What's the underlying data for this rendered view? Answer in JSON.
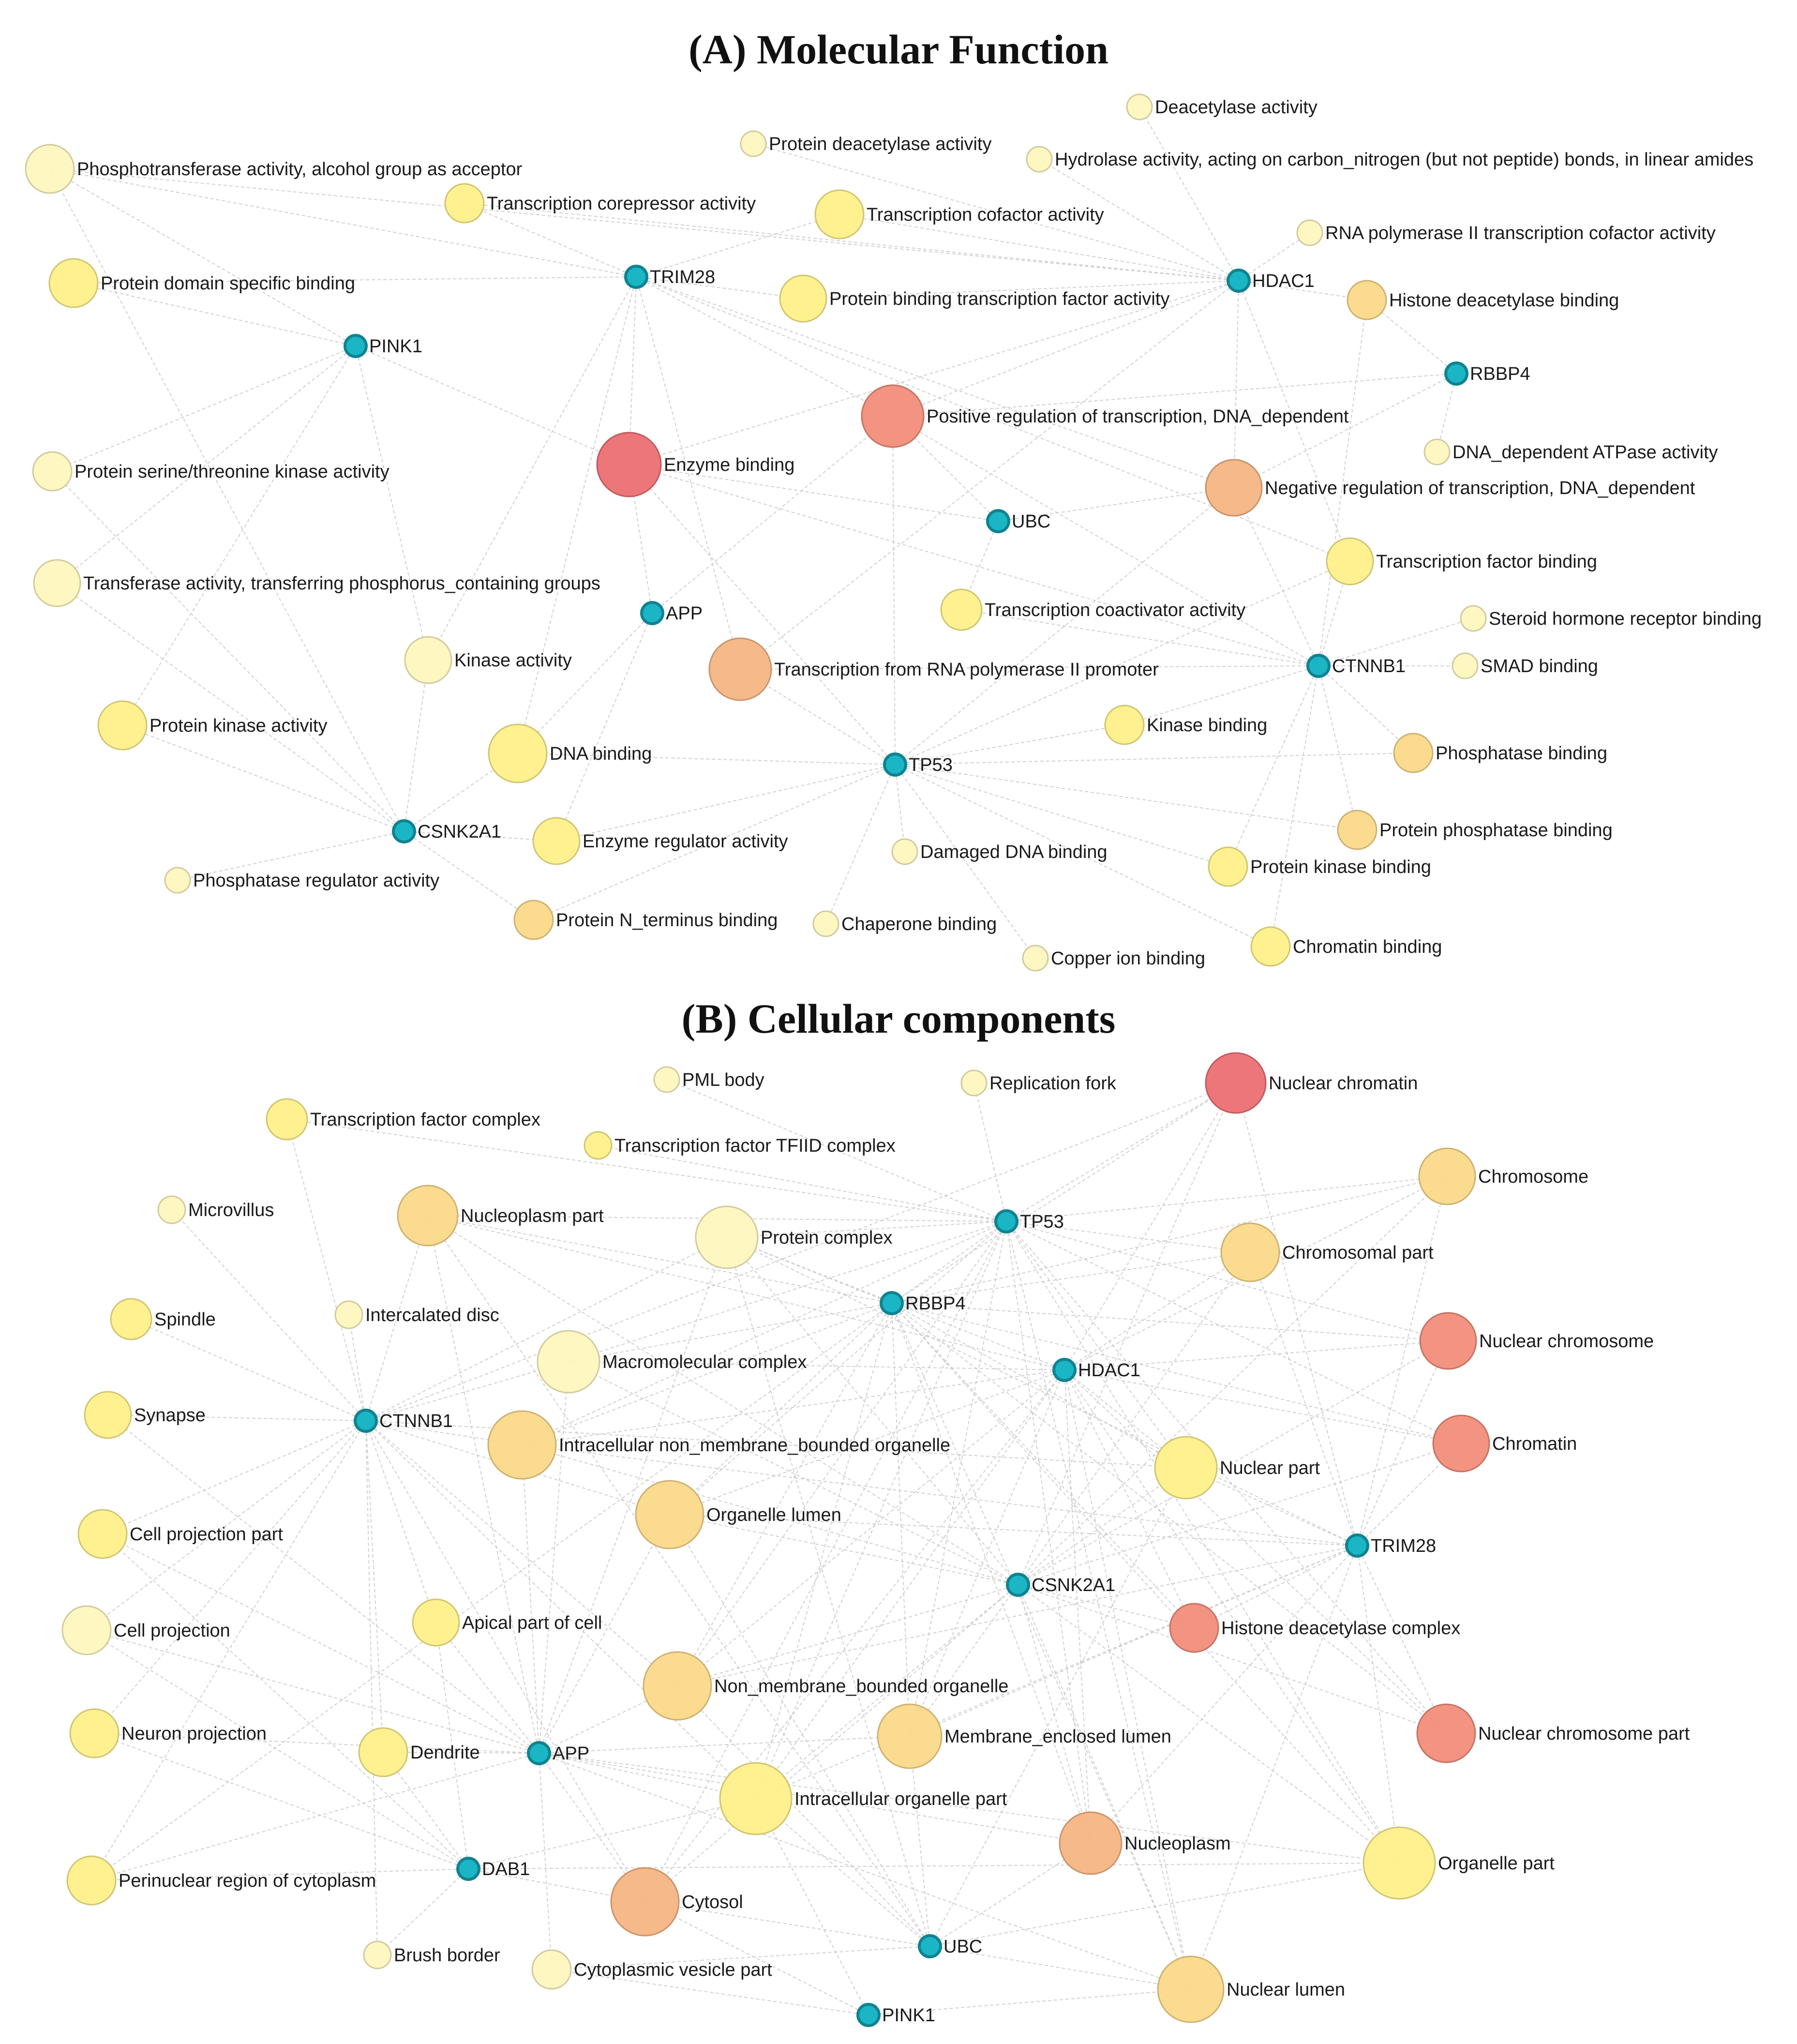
{
  "colors": {
    "gene": "#1bb6c6",
    "gene_stroke": "#0f8391",
    "edge": "#c9c9c9",
    "level1": "#fff7bf",
    "level2": "#fff08a",
    "level3": "#fbd98a",
    "level4": "#f6b584",
    "level5": "#f28d7a",
    "level6": "#ec6f73"
  },
  "panel_a": {
    "letter": "A",
    "title": "Molecular Function",
    "genes": [
      "TRIM28",
      "HDAC1",
      "PINK1",
      "RBBP4",
      "UBC",
      "APP",
      "CTNNB1",
      "TP53",
      "CSNK2A1"
    ],
    "terms": [
      {
        "id": "deacetylase",
        "label": "Deacetylase activity",
        "level": 1
      },
      {
        "id": "protein_deacetylase",
        "label": "Protein deacetylase activity",
        "level": 1
      },
      {
        "id": "hydrolase",
        "label": "Hydrolase activity, acting on carbon_nitrogen (but not peptide) bonds, in linear amides",
        "level": 1
      },
      {
        "id": "phosphotransferase",
        "label": "Phosphotransferase activity, alcohol group as acceptor",
        "level": 1
      },
      {
        "id": "corepressor",
        "label": "Transcription corepressor activity",
        "level": 2
      },
      {
        "id": "cofactor",
        "label": "Transcription cofactor activity",
        "level": 2
      },
      {
        "id": "rnapol_cofactor",
        "label": "RNA polymerase II transcription cofactor activity",
        "level": 1
      },
      {
        "id": "domain_binding",
        "label": "Protein domain specific binding",
        "level": 2
      },
      {
        "id": "binding_tf",
        "label": "Protein binding transcription factor activity",
        "level": 2
      },
      {
        "id": "hdac_binding",
        "label": "Histone deacetylase binding",
        "level": 3
      },
      {
        "id": "pos_reg",
        "label": "Positive regulation of transcription, DNA_dependent",
        "level": 5
      },
      {
        "id": "ser_thr_kinase",
        "label": "Protein serine/threonine kinase activity",
        "level": 1
      },
      {
        "id": "enzyme_binding",
        "label": "Enzyme binding",
        "level": 6
      },
      {
        "id": "atpase",
        "label": "DNA_dependent ATPase activity",
        "level": 1
      },
      {
        "id": "neg_reg",
        "label": "Negative regulation of transcription, DNA_dependent",
        "level": 4
      },
      {
        "id": "transferase",
        "label": "Transferase activity, transferring phosphorus_containing groups",
        "level": 1
      },
      {
        "id": "tf_binding",
        "label": "Transcription factor binding",
        "level": 2
      },
      {
        "id": "coactivator",
        "label": "Transcription coactivator activity",
        "level": 2
      },
      {
        "id": "steroid",
        "label": "Steroid hormone receptor binding",
        "level": 1
      },
      {
        "id": "kinase_activity",
        "label": "Kinase activity",
        "level": 1
      },
      {
        "id": "rnapol_promoter",
        "label": "Transcription from RNA polymerase II promoter",
        "level": 4
      },
      {
        "id": "smad",
        "label": "SMAD binding",
        "level": 1
      },
      {
        "id": "protein_kinase_activity",
        "label": "Protein kinase activity",
        "level": 2
      },
      {
        "id": "kinase_binding",
        "label": "Kinase binding",
        "level": 2
      },
      {
        "id": "dna_binding",
        "label": "DNA binding",
        "level": 2
      },
      {
        "id": "phosphatase_binding",
        "label": "Phosphatase binding",
        "level": 3
      },
      {
        "id": "protein_phosphatase_binding",
        "label": "Protein phosphatase binding",
        "level": 3
      },
      {
        "id": "enzyme_regulator",
        "label": "Enzyme regulator activity",
        "level": 2
      },
      {
        "id": "damaged_dna",
        "label": "Damaged DNA binding",
        "level": 1
      },
      {
        "id": "protein_kinase_binding",
        "label": "Protein kinase binding",
        "level": 2
      },
      {
        "id": "phosphatase_regulator",
        "label": "Phosphatase regulator activity",
        "level": 1
      },
      {
        "id": "n_terminus",
        "label": "Protein N_terminus binding",
        "level": 3
      },
      {
        "id": "chaperone",
        "label": "Chaperone binding",
        "level": 1
      },
      {
        "id": "chromatin_binding",
        "label": "Chromatin binding",
        "level": 2
      },
      {
        "id": "copper",
        "label": "Copper ion binding",
        "level": 1
      }
    ]
  },
  "panel_b": {
    "letter": "B",
    "title": "Cellular components",
    "genes": [
      "TP53",
      "RBBP4",
      "HDAC1",
      "CTNNB1",
      "TRIM28",
      "CSNK2A1",
      "APP",
      "DAB1",
      "UBC",
      "PINK1"
    ],
    "terms": [
      {
        "id": "pml",
        "label": "PML body",
        "level": 1
      },
      {
        "id": "replication_fork",
        "label": "Replication fork",
        "level": 1
      },
      {
        "id": "nuclear_chromatin",
        "label": "Nuclear chromatin",
        "level": 6
      },
      {
        "id": "tf_complex",
        "label": "Transcription factor complex",
        "level": 2
      },
      {
        "id": "tfiid",
        "label": "Transcription factor TFIID complex",
        "level": 2
      },
      {
        "id": "chromosome",
        "label": "Chromosome",
        "level": 3
      },
      {
        "id": "microvillus",
        "label": "Microvillus",
        "level": 1
      },
      {
        "id": "nucleoplasm_part",
        "label": "Nucleoplasm part",
        "level": 3
      },
      {
        "id": "protein_complex",
        "label": "Protein complex",
        "level": 1
      },
      {
        "id": "chromosomal_part",
        "label": "Chromosomal part",
        "level": 3
      },
      {
        "id": "spindle",
        "label": "Spindle",
        "level": 2
      },
      {
        "id": "intercalated_disc",
        "label": "Intercalated disc",
        "level": 1
      },
      {
        "id": "nuclear_chromosome",
        "label": "Nuclear chromosome",
        "level": 5
      },
      {
        "id": "macromolecular",
        "label": "Macromolecular complex",
        "level": 1
      },
      {
        "id": "synapse",
        "label": "Synapse",
        "level": 2
      },
      {
        "id": "intra_non_membrane",
        "label": "Intracellular non_membrane_bounded organelle",
        "level": 3
      },
      {
        "id": "chromatin",
        "label": "Chromatin",
        "level": 5
      },
      {
        "id": "nuclear_part",
        "label": "Nuclear part",
        "level": 2
      },
      {
        "id": "organelle_lumen",
        "label": "Organelle lumen",
        "level": 3
      },
      {
        "id": "cell_projection_part",
        "label": "Cell projection part",
        "level": 2
      },
      {
        "id": "cell_projection",
        "label": "Cell projection",
        "level": 1
      },
      {
        "id": "apical",
        "label": "Apical part of cell",
        "level": 2
      },
      {
        "id": "histone_complex",
        "label": "Histone deacetylase complex",
        "level": 5
      },
      {
        "id": "non_membrane",
        "label": "Non_membrane_bounded organelle",
        "level": 3
      },
      {
        "id": "neuron_projection",
        "label": "Neuron projection",
        "level": 2
      },
      {
        "id": "dendrite",
        "label": "Dendrite",
        "level": 2
      },
      {
        "id": "membrane_lumen",
        "label": "Membrane_enclosed lumen",
        "level": 3
      },
      {
        "id": "nuclear_chromosome_part",
        "label": "Nuclear chromosome part",
        "level": 5
      },
      {
        "id": "intra_organelle_part",
        "label": "Intracellular organelle part",
        "level": 2
      },
      {
        "id": "nucleoplasm",
        "label": "Nucleoplasm",
        "level": 4
      },
      {
        "id": "organelle_part",
        "label": "Organelle part",
        "level": 2
      },
      {
        "id": "perinuclear",
        "label": "Perinuclear region of cytoplasm",
        "level": 2
      },
      {
        "id": "cytosol",
        "label": "Cytosol",
        "level": 4
      },
      {
        "id": "brush_border",
        "label": "Brush border",
        "level": 1
      },
      {
        "id": "cyto_vesicle",
        "label": "Cytoplasmic vesicle part",
        "level": 1
      },
      {
        "id": "nuclear_lumen",
        "label": "Nuclear lumen",
        "level": 3
      }
    ]
  }
}
